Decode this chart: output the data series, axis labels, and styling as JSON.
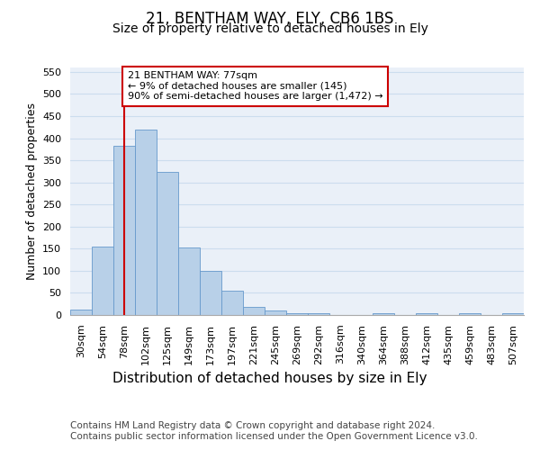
{
  "title": "21, BENTHAM WAY, ELY, CB6 1BS",
  "subtitle": "Size of property relative to detached houses in Ely",
  "xlabel": "Distribution of detached houses by size in Ely",
  "ylabel": "Number of detached properties",
  "bar_color": "#b8d0e8",
  "bar_edge_color": "#6699cc",
  "grid_color": "#ccddee",
  "background_color": "#eaf0f8",
  "categories": [
    "30sqm",
    "54sqm",
    "78sqm",
    "102sqm",
    "125sqm",
    "149sqm",
    "173sqm",
    "197sqm",
    "221sqm",
    "245sqm",
    "269sqm",
    "292sqm",
    "316sqm",
    "340sqm",
    "364sqm",
    "388sqm",
    "412sqm",
    "435sqm",
    "459sqm",
    "483sqm",
    "507sqm"
  ],
  "values": [
    13,
    155,
    383,
    420,
    323,
    153,
    100,
    55,
    19,
    10,
    5,
    5,
    0,
    0,
    5,
    0,
    5,
    0,
    5,
    0,
    5
  ],
  "ylim": [
    0,
    560
  ],
  "yticks": [
    0,
    50,
    100,
    150,
    200,
    250,
    300,
    350,
    400,
    450,
    500,
    550
  ],
  "property_line_x": 2,
  "property_line_color": "#cc0000",
  "annotation_text": "21 BENTHAM WAY: 77sqm\n← 9% of detached houses are smaller (145)\n90% of semi-detached houses are larger (1,472) →",
  "annotation_box_color": "#cc0000",
  "footer_text": "Contains HM Land Registry data © Crown copyright and database right 2024.\nContains public sector information licensed under the Open Government Licence v3.0.",
  "title_fontsize": 12,
  "subtitle_fontsize": 10,
  "xlabel_fontsize": 11,
  "ylabel_fontsize": 9,
  "annotation_fontsize": 8,
  "footer_fontsize": 7.5,
  "tick_fontsize": 8
}
